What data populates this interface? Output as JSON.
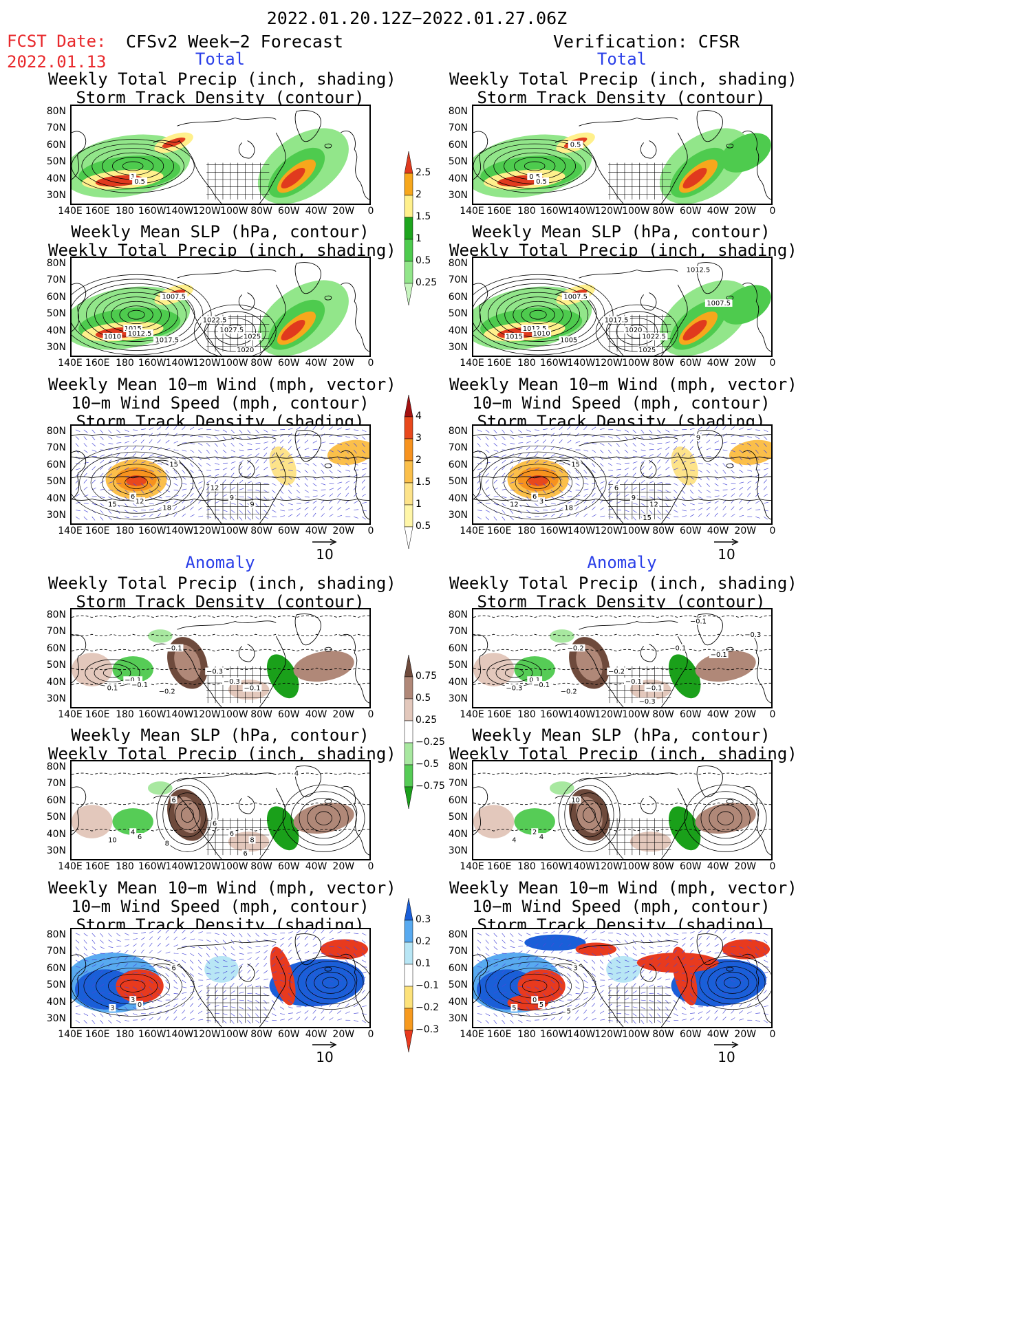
{
  "header": {
    "period": "2022.01.20.12Z−2022.01.27.06Z",
    "fcst_label": "FCST Date:",
    "fcst_date": "2022.01.13",
    "left_title": "CFSv2 Week−2 Forecast",
    "right_title": "Verification: CFSR"
  },
  "sections": {
    "total": "Total",
    "anomaly": "Anomaly"
  },
  "panel_titles": {
    "precip_storm": "Weekly Total Precip (inch, shading)\nStorm Track Density (contour)",
    "slp_precip": "Weekly Mean SLP (hPa, contour)\nWeekly Total Precip (inch, shading)",
    "wind_storm": "Weekly Mean 10−m Wind (mph, vector)\n10−m Wind Speed (mph, contour)\nStorm Track Density (shading)"
  },
  "axes": {
    "lat_labels": [
      "80N",
      "70N",
      "60N",
      "50N",
      "40N",
      "30N"
    ],
    "lon_labels": [
      "140E",
      "160E",
      "180",
      "160W",
      "140W",
      "120W",
      "100W",
      "80W",
      "60W",
      "40W",
      "20W",
      "0"
    ]
  },
  "vector_ref": "10",
  "colorbars": {
    "total_precip": {
      "levels": [
        "0.25",
        "0.5",
        "1",
        "1.5",
        "2",
        "2.5"
      ],
      "colors": [
        "#c8f5c0",
        "#92e68a",
        "#4ecb4e",
        "#1ea51e",
        "#fff08c",
        "#f7a71c",
        "#e03a1e"
      ]
    },
    "total_storm": {
      "levels": [
        "0.5",
        "1",
        "1.5",
        "2",
        "3",
        "4"
      ],
      "colors": [
        "#ffffff",
        "#fff6a8",
        "#fde38a",
        "#fbbf4a",
        "#f7921e",
        "#e8481c",
        "#a31010"
      ]
    },
    "anom_precip": {
      "levels": [
        "0.75",
        "0.5",
        "0.25",
        "−0.25",
        "−0.5",
        "−0.75"
      ],
      "colors": [
        "#1aa01a",
        "#56cc56",
        "#a8e8a0",
        "#ffffff",
        "#e3c8bc",
        "#b08878",
        "#6e4a3c"
      ]
    },
    "anom_storm": {
      "levels": [
        "0.3",
        "0.2",
        "0.1",
        "−0.1",
        "−0.2",
        "−0.3"
      ],
      "colors": [
        "#e83a1e",
        "#f79a1e",
        "#fde27a",
        "#ffffff",
        "#b8e6f5",
        "#58aaf0",
        "#1a5fd8"
      ]
    }
  },
  "contour_labels": {
    "f_total_precip": [
      "1",
      "0.5"
    ],
    "v_total_precip": [
      "0.5",
      "0.5",
      "0.5"
    ],
    "f_total_slp": [
      "1015",
      "1012.5",
      "1007.5",
      "1010",
      "1017.5",
      "1022.5",
      "1027.5",
      "1025",
      "1020"
    ],
    "v_total_slp": [
      "1012.5",
      "1010",
      "1007.5",
      "1015",
      "1005",
      "1017.5",
      "1020",
      "1022.5",
      "1025",
      "1012.5",
      "1007.5"
    ],
    "f_total_wind": [
      "6",
      "12",
      "15",
      "15",
      "18",
      "12",
      "9",
      "9"
    ],
    "v_total_wind": [
      "6",
      "3",
      "15",
      "12",
      "18",
      "6",
      "9",
      "12",
      "15",
      "9"
    ],
    "f_anom_precip": [
      "−0.1",
      "−0.1",
      "−0.1",
      "0.1",
      "−0.2",
      "−0.3",
      "−0.3",
      "−0.1"
    ],
    "v_anom_precip": [
      "0.1",
      "−0.1",
      "−0.2",
      "−0.3",
      "−0.2",
      "−0.2",
      "−0.1",
      "−0.1",
      "−0.3",
      "−0.1",
      "−0.1",
      "−0.3",
      "−0.1"
    ],
    "f_anom_slp": [
      "4",
      "6",
      "6",
      "10",
      "8",
      "6",
      "6",
      "8",
      "6",
      "4"
    ],
    "v_anom_slp": [
      "2",
      "4",
      "10",
      "4"
    ],
    "f_anom_wind": [
      "3",
      "0",
      "6",
      "3"
    ],
    "v_anom_wind": [
      "0",
      "5",
      "3",
      "5",
      "5"
    ]
  }
}
